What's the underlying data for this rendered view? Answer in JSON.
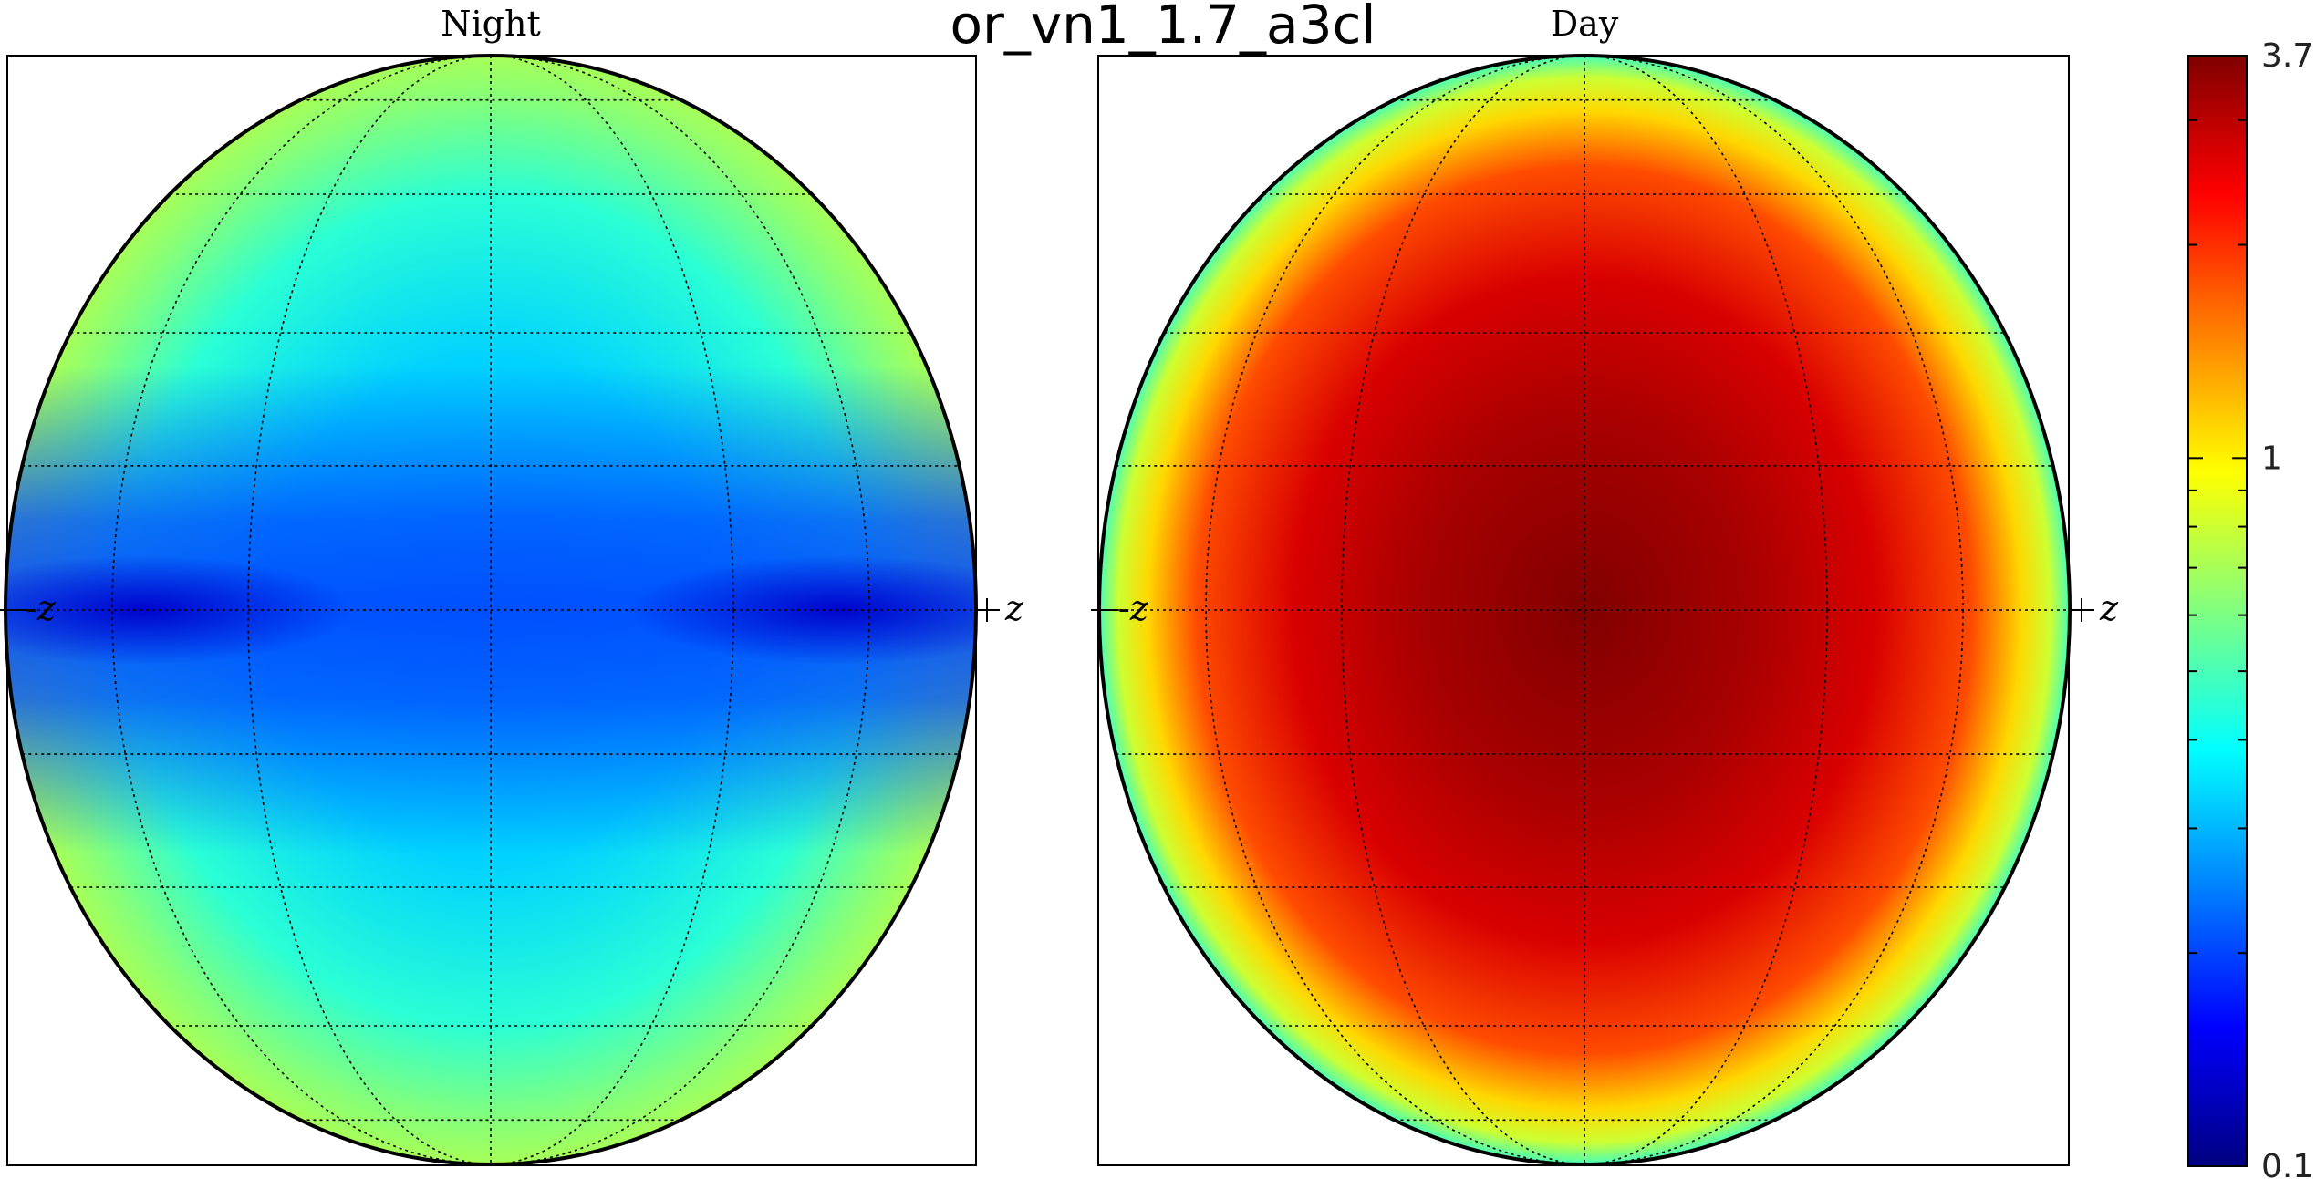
{
  "title": "or_vn1_1.7_a3cl",
  "chart_data": [
    {
      "type": "heatmap",
      "title": "Night",
      "projection": "orthographic sphere",
      "axis_labels": [
        "-z",
        "+z"
      ],
      "grid": true,
      "description_colors": {
        "rim": "#9be25a",
        "mid": "#14e6e6",
        "equator": "#0a50ff",
        "limb_equator": "#000ca8"
      },
      "color_stops": [
        {
          "r": 0.0,
          "v": 0.3
        },
        {
          "r": 0.45,
          "v": 0.33
        },
        {
          "r": 0.75,
          "v": 0.45
        },
        {
          "r": 0.92,
          "v": 0.62
        },
        {
          "r": 1.0,
          "v": 0.7
        }
      ],
      "equator_band_min": 0.13,
      "value_range": [
        0.1,
        3.7
      ]
    },
    {
      "type": "heatmap",
      "title": "Day",
      "projection": "orthographic sphere",
      "axis_labels": [
        "-z",
        "+z"
      ],
      "grid": true,
      "color_stops": [
        {
          "r": 0.0,
          "v": 3.7
        },
        {
          "r": 0.35,
          "v": 3.2
        },
        {
          "r": 0.6,
          "v": 2.7
        },
        {
          "r": 0.8,
          "v": 1.8
        },
        {
          "r": 0.9,
          "v": 1.1
        },
        {
          "r": 0.96,
          "v": 0.8
        },
        {
          "r": 1.0,
          "v": 0.5
        }
      ],
      "value_range": [
        0.1,
        3.7
      ]
    }
  ],
  "colorbar": {
    "scale": "log",
    "colormap": "jet",
    "min": 0.1,
    "max": 3.7,
    "tick_labels": [
      "3.7",
      "1",
      "0.1"
    ],
    "tick_values": [
      3.7,
      1,
      0.1
    ],
    "minor_ticks": [
      0.2,
      0.3,
      0.4,
      0.5,
      0.6,
      0.7,
      0.8,
      0.9,
      2,
      3
    ]
  }
}
